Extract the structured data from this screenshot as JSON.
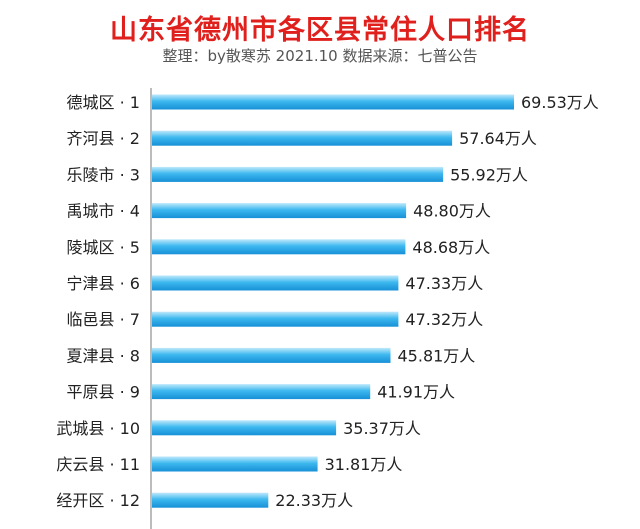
{
  "chart_data": {
    "type": "bar",
    "orientation": "horizontal",
    "title": "山东省德州市各区县常住人口排名",
    "subtitle": "整理：by散寒苏  2021.10  数据来源：七普公告",
    "categories": [
      "德城区 · 1",
      "齐河县 · 2",
      "乐陵市 · 3",
      "禹城市 · 4",
      "陵城区 · 5",
      "宁津县 · 6",
      "临邑县 · 7",
      "夏津县 · 8",
      "平原县 · 9",
      "武城县 · 10",
      "庆云县 · 11",
      "经开区 · 12"
    ],
    "values": [
      69.53,
      57.64,
      55.92,
      48.8,
      48.68,
      47.33,
      47.32,
      45.81,
      41.91,
      35.37,
      31.81,
      22.33
    ],
    "value_labels": [
      "69.53万人",
      "57.64万人",
      "55.92万人",
      "48.80万人",
      "48.68万人",
      "47.33万人",
      "47.32万人",
      "45.81万人",
      "41.91万人",
      "35.37万人",
      "31.81万人",
      "22.33万人"
    ],
    "xlim": [
      0,
      69.53
    ],
    "grid": false,
    "legend": "none",
    "colors": {
      "bar_light": "#bfe9fb",
      "bar_mid": "#3db8ef",
      "bar_dark": "#1790d6",
      "title": "#e0201c",
      "axis": "#7a7a7a"
    }
  }
}
